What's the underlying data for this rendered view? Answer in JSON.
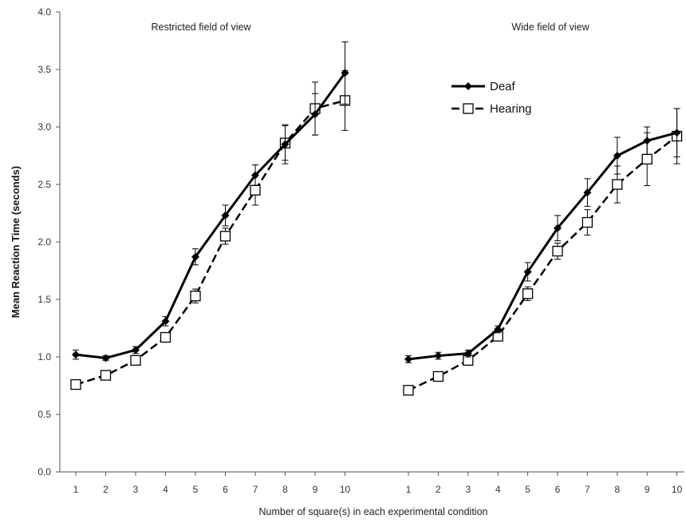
{
  "chart_data": {
    "type": "line",
    "ylabel": "Mean Reaction Time (seconds)",
    "xlabel": "Number of square(s) in each experimental condition",
    "ylim": [
      0.0,
      4.0
    ],
    "yticks": [
      "0.0",
      "0.5",
      "1.0",
      "1.5",
      "2.0",
      "2.5",
      "3.0",
      "3.5",
      "4.0"
    ],
    "grid": false,
    "legend": {
      "position": "top-right",
      "entries": [
        "Deaf",
        "Hearing"
      ]
    },
    "panels": [
      {
        "title": "Restricted field of view",
        "categories": [
          "1",
          "2",
          "3",
          "4",
          "5",
          "6",
          "7",
          "8",
          "9",
          "10"
        ],
        "series": [
          {
            "name": "Deaf",
            "marker": "filled-diamond",
            "line": "solid",
            "values": [
              1.02,
              0.99,
              1.06,
              1.31,
              1.87,
              2.23,
              2.58,
              2.85,
              3.11,
              3.47
            ],
            "errors": [
              0.04,
              0.02,
              0.03,
              0.04,
              0.07,
              0.09,
              0.09,
              0.17,
              0.18,
              0.27
            ]
          },
          {
            "name": "Hearing",
            "marker": "open-square",
            "line": "dashed",
            "values": [
              0.76,
              0.84,
              0.97,
              1.17,
              1.53,
              2.05,
              2.45,
              2.86,
              3.16,
              3.23
            ],
            "errors": [
              0.02,
              0.03,
              0.03,
              0.04,
              0.06,
              0.07,
              0.13,
              0.15,
              0.23,
              0.26
            ]
          }
        ]
      },
      {
        "title": "Wide field of view",
        "categories": [
          "1",
          "2",
          "3",
          "4",
          "5",
          "6",
          "7",
          "8",
          "9",
          "10"
        ],
        "series": [
          {
            "name": "Deaf",
            "marker": "filled-diamond",
            "line": "solid",
            "values": [
              0.98,
              1.01,
              1.03,
              1.24,
              1.74,
              2.12,
              2.43,
              2.75,
              2.88,
              2.95
            ],
            "errors": [
              0.03,
              0.03,
              0.03,
              0.03,
              0.08,
              0.11,
              0.12,
              0.16,
              0.12,
              0.21
            ]
          },
          {
            "name": "Hearing",
            "marker": "open-square",
            "line": "dashed",
            "values": [
              0.71,
              0.83,
              0.97,
              1.18,
              1.55,
              1.92,
              2.17,
              2.5,
              2.72,
              2.92
            ],
            "errors": [
              0.02,
              0.03,
              0.03,
              0.04,
              0.06,
              0.07,
              0.11,
              0.16,
              0.23,
              0.24
            ]
          }
        ]
      }
    ]
  }
}
